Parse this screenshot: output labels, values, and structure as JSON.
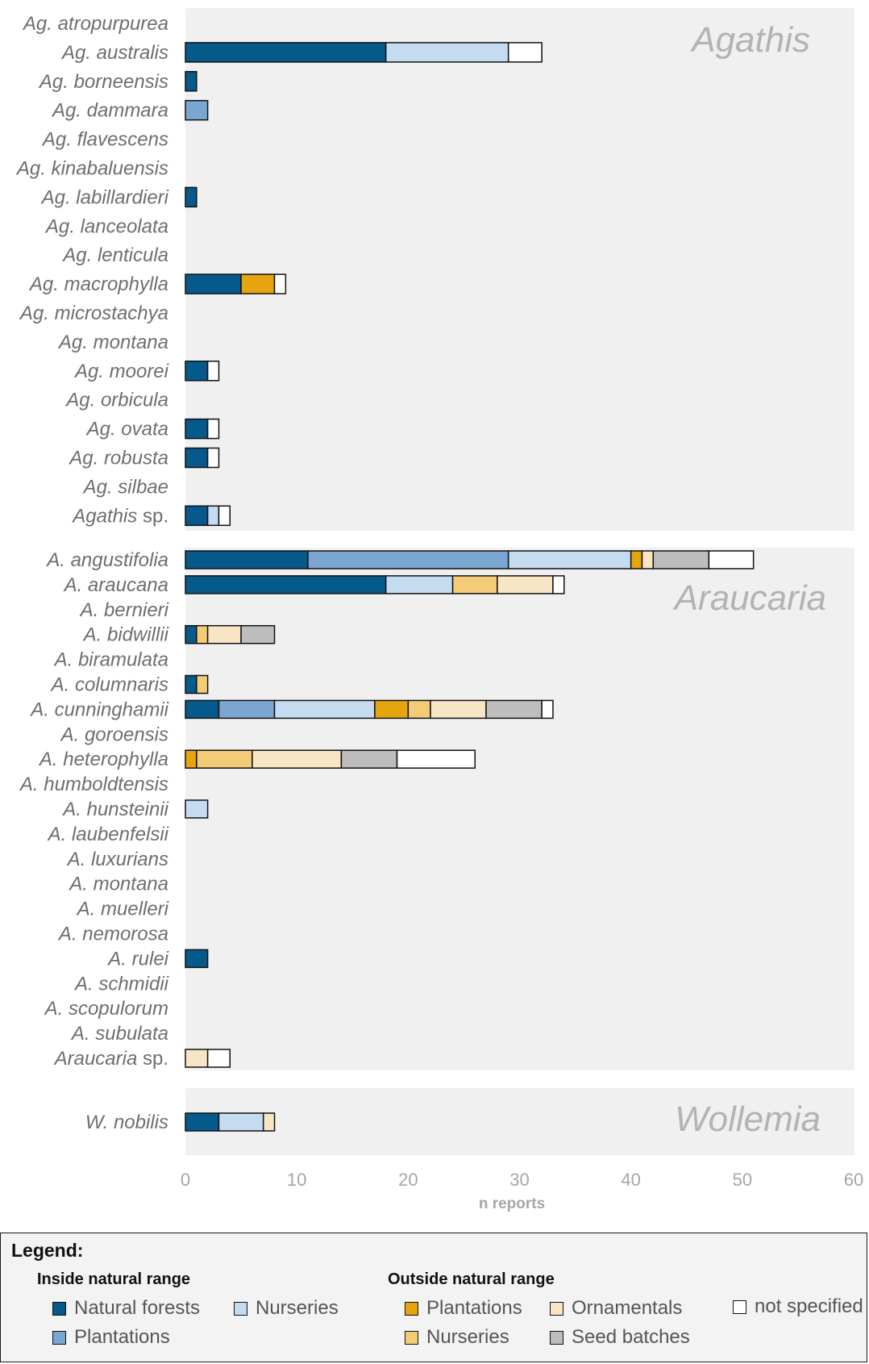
{
  "colors": {
    "in_natural_forests": "#065a8b",
    "in_plantations": "#7aa6d0",
    "in_nurseries": "#c4dbf0",
    "out_plantations": "#e6a40f",
    "out_nurseries": "#f4cc78",
    "out_ornamentals": "#f8e5c6",
    "out_seed_batches": "#bdbdbd",
    "not_specified": "#ffffff"
  },
  "chart_data": {
    "type": "bar",
    "orientation": "horizontal",
    "stacked": true,
    "xlabel": "n reports",
    "xlim": [
      0,
      60
    ],
    "xticks": [
      0,
      10,
      20,
      30,
      40,
      50,
      60
    ],
    "grid": false,
    "legend_position": "bottom",
    "series": [
      {
        "key": "in_natural_forests",
        "name": "Natural forests",
        "group": "Inside natural range"
      },
      {
        "key": "in_plantations",
        "name": "Plantations",
        "group": "Inside natural range"
      },
      {
        "key": "in_nurseries",
        "name": "Nurseries",
        "group": "Inside natural range"
      },
      {
        "key": "out_plantations",
        "name": "Plantations",
        "group": "Outside natural range"
      },
      {
        "key": "out_nurseries",
        "name": "Nurseries",
        "group": "Outside natural range"
      },
      {
        "key": "out_ornamentals",
        "name": "Ornamentals",
        "group": "Outside natural range"
      },
      {
        "key": "out_seed_batches",
        "name": "Seed batches",
        "group": "Outside natural range"
      },
      {
        "key": "not_specified",
        "name": "not specified",
        "group": ""
      }
    ],
    "panels": [
      {
        "genus": "Agathis",
        "species": [
          {
            "label": "Ag. atropurpurea",
            "values": [
              0,
              0,
              0,
              0,
              0,
              0,
              0,
              0
            ]
          },
          {
            "label": "Ag. australis",
            "values": [
              18,
              0,
              11,
              0,
              0,
              0,
              0,
              3
            ]
          },
          {
            "label": "Ag. borneensis",
            "values": [
              1,
              0,
              0,
              0,
              0,
              0,
              0,
              0
            ]
          },
          {
            "label": "Ag. dammara",
            "values": [
              0,
              2,
              0,
              0,
              0,
              0,
              0,
              0
            ]
          },
          {
            "label": "Ag. flavescens",
            "values": [
              0,
              0,
              0,
              0,
              0,
              0,
              0,
              0
            ]
          },
          {
            "label": "Ag. kinabaluensis",
            "values": [
              0,
              0,
              0,
              0,
              0,
              0,
              0,
              0
            ]
          },
          {
            "label": "Ag. labillardieri",
            "values": [
              1,
              0,
              0,
              0,
              0,
              0,
              0,
              0
            ]
          },
          {
            "label": "Ag. lanceolata",
            "values": [
              0,
              0,
              0,
              0,
              0,
              0,
              0,
              0
            ]
          },
          {
            "label": "Ag. lenticula",
            "values": [
              0,
              0,
              0,
              0,
              0,
              0,
              0,
              0
            ]
          },
          {
            "label": "Ag. macrophylla",
            "values": [
              5,
              0,
              0,
              3,
              0,
              0,
              0,
              1
            ]
          },
          {
            "label": "Ag. microstachya",
            "values": [
              0,
              0,
              0,
              0,
              0,
              0,
              0,
              0
            ]
          },
          {
            "label": "Ag. montana",
            "values": [
              0,
              0,
              0,
              0,
              0,
              0,
              0,
              0
            ]
          },
          {
            "label": "Ag. moorei",
            "values": [
              2,
              0,
              0,
              0,
              0,
              0,
              0,
              1
            ]
          },
          {
            "label": "Ag. orbicula",
            "values": [
              0,
              0,
              0,
              0,
              0,
              0,
              0,
              0
            ]
          },
          {
            "label": "Ag. ovata",
            "values": [
              2,
              0,
              0,
              0,
              0,
              0,
              0,
              1
            ]
          },
          {
            "label": "Ag. robusta",
            "values": [
              2,
              0,
              0,
              0,
              0,
              0,
              0,
              1
            ]
          },
          {
            "label": "Ag. silbae",
            "values": [
              0,
              0,
              0,
              0,
              0,
              0,
              0,
              0
            ]
          },
          {
            "label": "Agathis",
            "label_suffix": " sp.",
            "values": [
              2,
              0,
              1,
              0,
              0,
              0,
              0,
              1
            ]
          }
        ]
      },
      {
        "genus": "Araucaria",
        "species": [
          {
            "label": "A. angustifolia",
            "values": [
              11,
              18,
              11,
              1,
              0,
              1,
              5,
              4
            ]
          },
          {
            "label": "A. araucana",
            "values": [
              18,
              0,
              6,
              0,
              4,
              5,
              0,
              1
            ]
          },
          {
            "label": "A. bernieri",
            "values": [
              0,
              0,
              0,
              0,
              0,
              0,
              0,
              0
            ]
          },
          {
            "label": "A. bidwillii",
            "values": [
              1,
              0,
              0,
              0,
              1,
              3,
              3,
              0
            ]
          },
          {
            "label": "A. biramulata",
            "values": [
              0,
              0,
              0,
              0,
              0,
              0,
              0,
              0
            ]
          },
          {
            "label": "A. columnaris",
            "values": [
              1,
              0,
              0,
              0,
              1,
              0,
              0,
              0
            ]
          },
          {
            "label": "A. cunninghamii",
            "values": [
              3,
              5,
              9,
              3,
              2,
              5,
              5,
              1
            ]
          },
          {
            "label": "A. goroensis",
            "values": [
              0,
              0,
              0,
              0,
              0,
              0,
              0,
              0
            ]
          },
          {
            "label": "A. heterophylla",
            "values": [
              0,
              0,
              0,
              1,
              5,
              8,
              5,
              7
            ]
          },
          {
            "label": "A. humboldtensis",
            "values": [
              0,
              0,
              0,
              0,
              0,
              0,
              0,
              0
            ]
          },
          {
            "label": "A. hunsteinii",
            "values": [
              0,
              0,
              2,
              0,
              0,
              0,
              0,
              0
            ]
          },
          {
            "label": "A. laubenfelsii",
            "values": [
              0,
              0,
              0,
              0,
              0,
              0,
              0,
              0
            ]
          },
          {
            "label": "A. luxurians",
            "values": [
              0,
              0,
              0,
              0,
              0,
              0,
              0,
              0
            ]
          },
          {
            "label": "A. montana",
            "values": [
              0,
              0,
              0,
              0,
              0,
              0,
              0,
              0
            ]
          },
          {
            "label": "A. muelleri",
            "values": [
              0,
              0,
              0,
              0,
              0,
              0,
              0,
              0
            ]
          },
          {
            "label": "A. nemorosa",
            "values": [
              0,
              0,
              0,
              0,
              0,
              0,
              0,
              0
            ]
          },
          {
            "label": "A. rulei",
            "values": [
              2,
              0,
              0,
              0,
              0,
              0,
              0,
              0
            ]
          },
          {
            "label": "A. schmidii",
            "values": [
              0,
              0,
              0,
              0,
              0,
              0,
              0,
              0
            ]
          },
          {
            "label": "A. scopulorum",
            "values": [
              0,
              0,
              0,
              0,
              0,
              0,
              0,
              0
            ]
          },
          {
            "label": "A. subulata",
            "values": [
              0,
              0,
              0,
              0,
              0,
              0,
              0,
              0
            ]
          },
          {
            "label": "Araucaria",
            "label_suffix": " sp.",
            "values": [
              0,
              0,
              0,
              0,
              0,
              2,
              0,
              2
            ]
          }
        ]
      },
      {
        "genus": "Wollemia",
        "species": [
          {
            "label": "W. nobilis",
            "values": [
              3,
              0,
              4,
              0,
              0,
              1,
              0,
              0
            ]
          }
        ]
      }
    ]
  },
  "legend": {
    "title": "Legend:",
    "inside_title": "Inside natural range",
    "outside_title": "Outside natural range",
    "items": {
      "in_natural_forests": "Natural forests",
      "in_nurseries": "Nurseries",
      "in_plantations": "Plantations",
      "out_plantations": "Plantations",
      "out_ornamentals": "Ornamentals",
      "out_nurseries": "Nurseries",
      "out_seed_batches": "Seed batches",
      "not_specified": "not specified"
    }
  }
}
